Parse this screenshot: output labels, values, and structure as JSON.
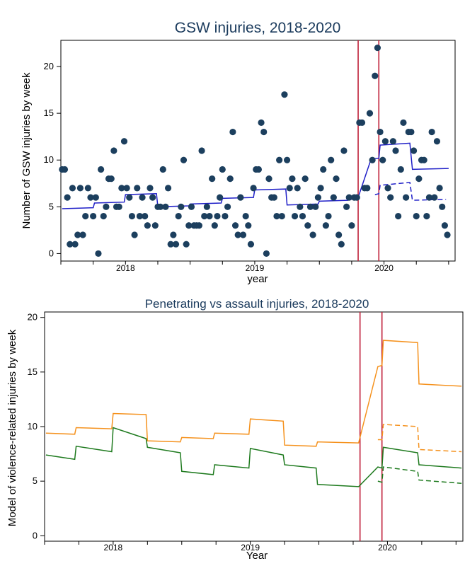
{
  "chart_data": [
    {
      "type": "scatter",
      "title": "GSW injuries, 2018-2020",
      "xlabel": "year",
      "ylabel": "Number of GSW injuries by week",
      "ylim": [
        0,
        22
      ],
      "yticks": [
        0,
        5,
        10,
        15,
        20
      ],
      "xticks": [
        {
          "x": 2018,
          "label": "2018"
        },
        {
          "x": 2019,
          "label": "2019"
        },
        {
          "x": 2020,
          "label": "2020"
        }
      ],
      "xlim": [
        2017.5,
        2020.55
      ],
      "grid": false,
      "colors": {
        "points": "#1c3f5e",
        "fit": "#1f1fc8",
        "vline": "#c0203a"
      },
      "vlines": [
        2019.8,
        2019.96
      ],
      "points": {
        "x": [
          2017.51,
          2017.53,
          2017.55,
          2017.57,
          2017.59,
          2017.61,
          2017.63,
          2017.65,
          2017.67,
          2017.69,
          2017.71,
          2017.73,
          2017.75,
          2017.77,
          2017.79,
          2017.81,
          2017.83,
          2017.85,
          2017.87,
          2017.89,
          2017.91,
          2017.93,
          2017.95,
          2017.97,
          2017.99,
          2018.01,
          2018.03,
          2018.05,
          2018.07,
          2018.09,
          2018.11,
          2018.13,
          2018.15,
          2018.17,
          2018.19,
          2018.21,
          2018.23,
          2018.25,
          2018.27,
          2018.29,
          2018.31,
          2018.33,
          2018.35,
          2018.37,
          2018.39,
          2018.41,
          2018.43,
          2018.45,
          2018.47,
          2018.49,
          2018.51,
          2018.53,
          2018.55,
          2018.57,
          2018.59,
          2018.61,
          2018.63,
          2018.65,
          2018.67,
          2018.69,
          2018.71,
          2018.73,
          2018.75,
          2018.77,
          2018.79,
          2018.81,
          2018.83,
          2018.85,
          2018.87,
          2018.89,
          2018.91,
          2018.93,
          2018.95,
          2018.97,
          2018.99,
          2019.01,
          2019.03,
          2019.05,
          2019.07,
          2019.09,
          2019.11,
          2019.13,
          2019.15,
          2019.17,
          2019.19,
          2019.21,
          2019.23,
          2019.25,
          2019.27,
          2019.29,
          2019.31,
          2019.33,
          2019.35,
          2019.37,
          2019.39,
          2019.41,
          2019.43,
          2019.45,
          2019.47,
          2019.49,
          2019.51,
          2019.53,
          2019.55,
          2019.57,
          2019.59,
          2019.61,
          2019.63,
          2019.65,
          2019.67,
          2019.69,
          2019.71,
          2019.73,
          2019.75,
          2019.77,
          2019.79,
          2019.81,
          2019.83,
          2019.85,
          2019.87,
          2019.89,
          2019.91,
          2019.93,
          2019.95,
          2019.97,
          2019.99,
          2020.01,
          2020.03,
          2020.05,
          2020.07,
          2020.09,
          2020.11,
          2020.13,
          2020.15,
          2020.17,
          2020.19,
          2020.21,
          2020.23,
          2020.25,
          2020.27,
          2020.29,
          2020.31,
          2020.33,
          2020.35,
          2020.37,
          2020.39,
          2020.41,
          2020.43,
          2020.45,
          2020.47,
          2020.49
        ],
        "y": [
          9,
          9,
          6,
          1,
          7,
          1,
          2,
          7,
          2,
          4,
          7,
          6,
          4,
          6,
          0,
          9,
          4,
          5,
          8,
          8,
          11,
          5,
          5,
          7,
          12,
          7,
          6,
          4,
          2,
          7,
          4,
          6,
          4,
          3,
          7,
          6,
          3,
          5,
          5,
          9,
          5,
          7,
          1,
          2,
          1,
          4,
          5,
          10,
          1,
          3,
          5,
          3,
          3,
          3,
          11,
          4,
          5,
          4,
          8,
          3,
          4,
          6,
          9,
          4,
          5,
          8,
          13,
          3,
          2,
          6,
          2,
          4,
          3,
          1,
          7,
          9,
          9,
          14,
          13,
          0,
          8,
          6,
          6,
          4,
          10,
          4,
          17,
          10,
          7,
          8,
          4,
          7,
          5,
          4,
          8,
          3,
          5,
          2,
          5,
          6,
          7,
          9,
          3,
          4,
          10,
          6,
          8,
          2,
          1,
          11,
          5,
          6,
          3,
          6,
          6,
          14,
          14,
          7,
          7,
          15,
          10,
          19,
          22,
          13,
          10,
          12,
          7,
          6,
          12,
          11,
          4,
          9,
          14,
          6,
          13,
          13,
          11,
          4,
          8,
          10,
          10,
          4,
          6,
          13,
          6,
          12,
          7,
          5,
          3,
          2
        ],
        "note_cutoff": 144
      },
      "fit_segments": [
        {
          "style": "solid",
          "points": [
            [
              2017.51,
              4.8
            ],
            [
              2017.75,
              4.9
            ],
            [
              2017.76,
              5.4
            ],
            [
              2017.99,
              5.5
            ],
            [
              2018.0,
              6.3
            ],
            [
              2018.24,
              6.4
            ],
            [
              2018.25,
              5.0
            ],
            [
              2018.49,
              5.1
            ],
            [
              2018.5,
              5.3
            ],
            [
              2018.74,
              5.4
            ],
            [
              2018.75,
              5.9
            ],
            [
              2018.99,
              6.0
            ],
            [
              2019.0,
              6.8
            ],
            [
              2019.24,
              6.9
            ],
            [
              2019.25,
              5.2
            ],
            [
              2019.49,
              5.3
            ],
            [
              2019.5,
              5.6
            ],
            [
              2019.72,
              5.7
            ],
            [
              2019.8,
              6.0
            ],
            [
              2019.9,
              10.1
            ],
            [
              2019.96,
              10.2
            ],
            [
              2019.97,
              11.6
            ],
            [
              2020.2,
              11.8
            ],
            [
              2020.22,
              9.0
            ],
            [
              2020.5,
              9.1
            ]
          ]
        },
        {
          "style": "dashed",
          "points": [
            [
              2019.93,
              6.3
            ],
            [
              2019.96,
              6.4
            ],
            [
              2019.97,
              7.3
            ],
            [
              2020.2,
              7.6
            ],
            [
              2020.22,
              5.7
            ],
            [
              2020.48,
              5.8
            ]
          ]
        }
      ]
    },
    {
      "type": "line",
      "title": "Penetrating vs assault injuries, 2018-2020",
      "xlabel": "Year",
      "ylabel": "Model of violence-related injuries by week",
      "ylim": [
        0,
        20
      ],
      "yticks": [
        0,
        5,
        10,
        15,
        20
      ],
      "xticks": [
        {
          "x": 2018,
          "label": "2018"
        },
        {
          "x": 2019,
          "label": "2019"
        },
        {
          "x": 2020,
          "label": "2020"
        }
      ],
      "xlim": [
        2017.5,
        2020.55
      ],
      "grid": false,
      "vlines": [
        2019.8,
        2019.96
      ],
      "colors": {
        "orange": "#f5921e",
        "green": "#1e7a1e",
        "vline": "#c0203a"
      },
      "series": [
        {
          "color": "#f5921e",
          "style": "solid",
          "points": [
            [
              2017.51,
              9.4
            ],
            [
              2017.72,
              9.3
            ],
            [
              2017.73,
              9.9
            ],
            [
              2017.99,
              9.8
            ],
            [
              2018.0,
              11.2
            ],
            [
              2018.24,
              11.1
            ],
            [
              2018.25,
              8.7
            ],
            [
              2018.49,
              8.6
            ],
            [
              2018.5,
              9.0
            ],
            [
              2018.73,
              8.9
            ],
            [
              2018.74,
              9.4
            ],
            [
              2018.99,
              9.3
            ],
            [
              2019.0,
              10.7
            ],
            [
              2019.24,
              10.5
            ],
            [
              2019.25,
              8.3
            ],
            [
              2019.48,
              8.2
            ],
            [
              2019.49,
              8.6
            ],
            [
              2019.79,
              8.5
            ],
            [
              2019.93,
              15.5
            ],
            [
              2019.96,
              15.6
            ],
            [
              2019.97,
              17.9
            ],
            [
              2020.22,
              17.7
            ],
            [
              2020.23,
              13.9
            ],
            [
              2020.54,
              13.7
            ]
          ]
        },
        {
          "color": "#f5921e",
          "style": "dashed",
          "points": [
            [
              2019.93,
              8.8
            ],
            [
              2019.96,
              8.8
            ],
            [
              2019.97,
              10.2
            ],
            [
              2020.22,
              10.0
            ],
            [
              2020.23,
              7.9
            ],
            [
              2020.54,
              7.7
            ]
          ]
        },
        {
          "color": "#1e7a1e",
          "style": "solid",
          "points": [
            [
              2017.51,
              7.4
            ],
            [
              2017.72,
              7.0
            ],
            [
              2017.73,
              8.2
            ],
            [
              2017.99,
              7.7
            ],
            [
              2018.0,
              9.9
            ],
            [
              2018.24,
              8.9
            ],
            [
              2018.25,
              8.1
            ],
            [
              2018.49,
              7.6
            ],
            [
              2018.5,
              5.9
            ],
            [
              2018.73,
              5.6
            ],
            [
              2018.74,
              6.5
            ],
            [
              2018.99,
              6.2
            ],
            [
              2019.0,
              8.0
            ],
            [
              2019.24,
              7.4
            ],
            [
              2019.25,
              6.5
            ],
            [
              2019.48,
              6.2
            ],
            [
              2019.49,
              4.7
            ],
            [
              2019.79,
              4.5
            ],
            [
              2019.93,
              6.3
            ],
            [
              2019.96,
              6.2
            ],
            [
              2019.97,
              8.1
            ],
            [
              2020.22,
              7.6
            ],
            [
              2020.23,
              6.5
            ],
            [
              2020.54,
              6.2
            ]
          ]
        },
        {
          "color": "#1e7a1e",
          "style": "dashed",
          "points": [
            [
              2019.93,
              5.0
            ],
            [
              2019.96,
              4.9
            ],
            [
              2019.97,
              6.3
            ],
            [
              2020.22,
              5.9
            ],
            [
              2020.23,
              5.1
            ],
            [
              2020.54,
              4.8
            ]
          ]
        }
      ]
    }
  ]
}
